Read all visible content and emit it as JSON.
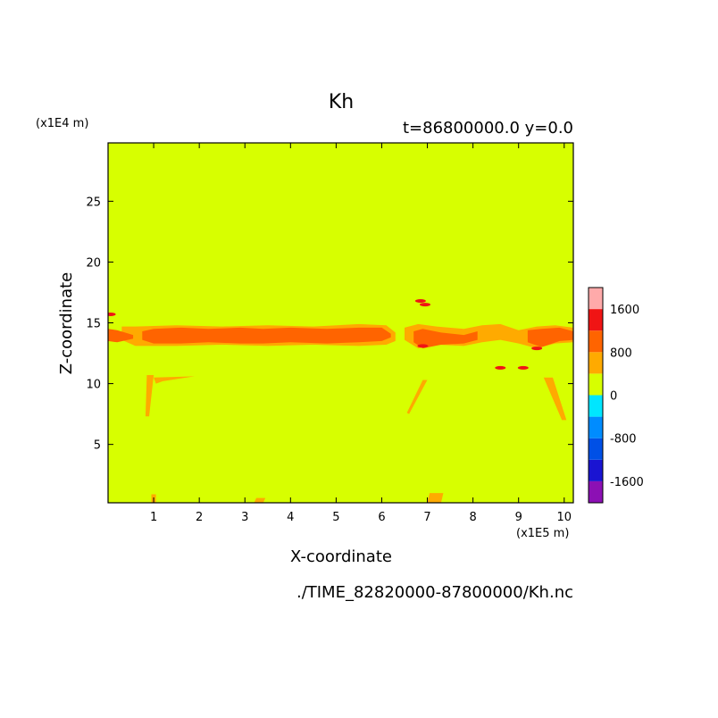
{
  "chart_data": {
    "type": "heatmap",
    "title": "Kh",
    "subtitle": "t=86800000.0 y=0.0",
    "xlabel": "X-coordinate",
    "ylabel": "Z-coordinate",
    "x_scale_label": "(x1E5 m)",
    "y_scale_label": "(x1E4 m)",
    "source_file": "./TIME_82820000-87800000/Kh.nc",
    "xlim": [
      0,
      10.2
    ],
    "ylim": [
      0.2,
      29.8
    ],
    "x_ticks": [
      "1",
      "2",
      "3",
      "4",
      "5",
      "6",
      "7",
      "8",
      "9",
      "10"
    ],
    "y_ticks": [
      "5",
      "10",
      "15",
      "20",
      "25"
    ],
    "background_level": "0 to 400",
    "colorbar": {
      "levels": [
        -2000,
        -1600,
        -1200,
        -800,
        -400,
        0,
        400,
        800,
        1200,
        1600,
        2000
      ],
      "colors": [
        "#8c10b4",
        "#1a14d2",
        "#0050e6",
        "#008cff",
        "#00e6ff",
        "#d7ff00",
        "#ffaa00",
        "#ff6400",
        "#f01414",
        "#ffaaaa"
      ],
      "labels": [
        "-1600",
        "-800",
        "0",
        "800",
        "1600"
      ]
    },
    "features": [
      {
        "name": "main band",
        "x": [
          0.3,
          6.2
        ],
        "z": [
          13.3,
          14.5
        ],
        "value_range": "800 to 1200"
      },
      {
        "name": "east band",
        "x": [
          6.5,
          10.2
        ],
        "z": [
          12.8,
          14.8
        ],
        "value_range": "400 to 1200"
      },
      {
        "name": "west edge band",
        "x": [
          0.0,
          0.6
        ],
        "z": [
          13.5,
          14.5
        ],
        "value_range": "800 to 1200"
      }
    ],
    "grid": false,
    "legend": "colorbar right"
  }
}
